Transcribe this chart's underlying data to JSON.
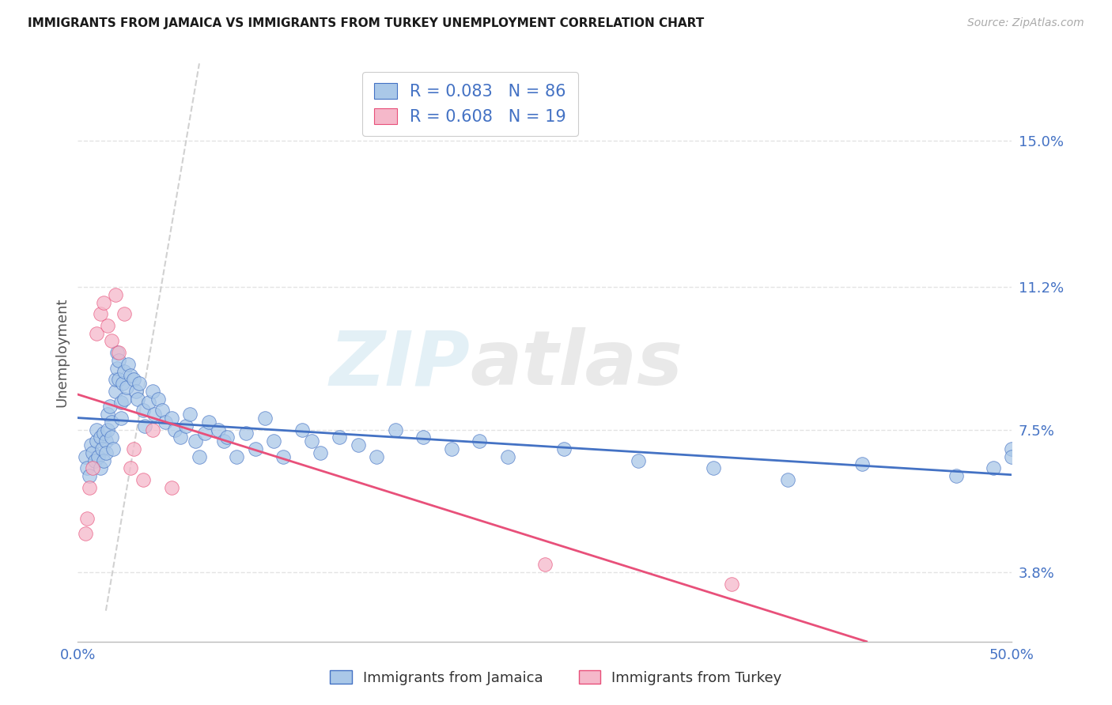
{
  "title": "IMMIGRANTS FROM JAMAICA VS IMMIGRANTS FROM TURKEY UNEMPLOYMENT CORRELATION CHART",
  "source": "Source: ZipAtlas.com",
  "ylabel": "Unemployment",
  "xlim": [
    0.0,
    0.5
  ],
  "ylim": [
    0.02,
    0.17
  ],
  "yticks": [
    0.038,
    0.075,
    0.112,
    0.15
  ],
  "ytick_labels": [
    "3.8%",
    "7.5%",
    "11.2%",
    "15.0%"
  ],
  "xtick_positions": [
    0.0,
    0.1,
    0.2,
    0.3,
    0.4,
    0.5
  ],
  "xtick_labels": [
    "0.0%",
    "",
    "",
    "",
    "",
    "50.0%"
  ],
  "legend_jamaica": "Immigrants from Jamaica",
  "legend_turkey": "Immigrants from Turkey",
  "R_jamaica": 0.083,
  "N_jamaica": 86,
  "R_turkey": 0.608,
  "N_turkey": 19,
  "color_jamaica": "#aac8e8",
  "color_turkey": "#f5b8ca",
  "color_jamaica_line": "#4472c4",
  "color_turkey_line": "#e8507a",
  "color_diag_line": "#cccccc",
  "watermark_color": "#d0e8f5",
  "background_color": "#ffffff",
  "grid_color": "#dddddd",
  "jamaica_x": [
    0.004,
    0.005,
    0.006,
    0.007,
    0.008,
    0.009,
    0.01,
    0.01,
    0.011,
    0.012,
    0.012,
    0.013,
    0.014,
    0.014,
    0.015,
    0.015,
    0.016,
    0.016,
    0.017,
    0.018,
    0.018,
    0.019,
    0.02,
    0.02,
    0.021,
    0.021,
    0.022,
    0.022,
    0.023,
    0.023,
    0.024,
    0.025,
    0.025,
    0.026,
    0.027,
    0.028,
    0.03,
    0.031,
    0.032,
    0.033,
    0.035,
    0.036,
    0.038,
    0.04,
    0.041,
    0.043,
    0.045,
    0.047,
    0.05,
    0.052,
    0.055,
    0.058,
    0.06,
    0.063,
    0.065,
    0.068,
    0.07,
    0.075,
    0.078,
    0.08,
    0.085,
    0.09,
    0.095,
    0.1,
    0.105,
    0.11,
    0.12,
    0.125,
    0.13,
    0.14,
    0.15,
    0.16,
    0.17,
    0.185,
    0.2,
    0.215,
    0.23,
    0.26,
    0.3,
    0.34,
    0.38,
    0.42,
    0.47,
    0.49,
    0.5,
    0.5
  ],
  "jamaica_y": [
    0.068,
    0.065,
    0.063,
    0.071,
    0.069,
    0.067,
    0.072,
    0.075,
    0.068,
    0.073,
    0.065,
    0.07,
    0.074,
    0.067,
    0.072,
    0.069,
    0.075,
    0.079,
    0.081,
    0.077,
    0.073,
    0.07,
    0.085,
    0.088,
    0.091,
    0.095,
    0.093,
    0.088,
    0.082,
    0.078,
    0.087,
    0.09,
    0.083,
    0.086,
    0.092,
    0.089,
    0.088,
    0.085,
    0.083,
    0.087,
    0.08,
    0.076,
    0.082,
    0.085,
    0.079,
    0.083,
    0.08,
    0.077,
    0.078,
    0.075,
    0.073,
    0.076,
    0.079,
    0.072,
    0.068,
    0.074,
    0.077,
    0.075,
    0.072,
    0.073,
    0.068,
    0.074,
    0.07,
    0.078,
    0.072,
    0.068,
    0.075,
    0.072,
    0.069,
    0.073,
    0.071,
    0.068,
    0.075,
    0.073,
    0.07,
    0.072,
    0.068,
    0.07,
    0.067,
    0.065,
    0.062,
    0.066,
    0.063,
    0.065,
    0.07,
    0.068
  ],
  "turkey_x": [
    0.004,
    0.005,
    0.006,
    0.008,
    0.01,
    0.012,
    0.014,
    0.016,
    0.018,
    0.02,
    0.022,
    0.025,
    0.028,
    0.03,
    0.035,
    0.04,
    0.05,
    0.25,
    0.35
  ],
  "turkey_y": [
    0.048,
    0.052,
    0.06,
    0.065,
    0.1,
    0.105,
    0.108,
    0.102,
    0.098,
    0.11,
    0.095,
    0.105,
    0.065,
    0.07,
    0.062,
    0.075,
    0.06,
    0.04,
    0.035
  ]
}
